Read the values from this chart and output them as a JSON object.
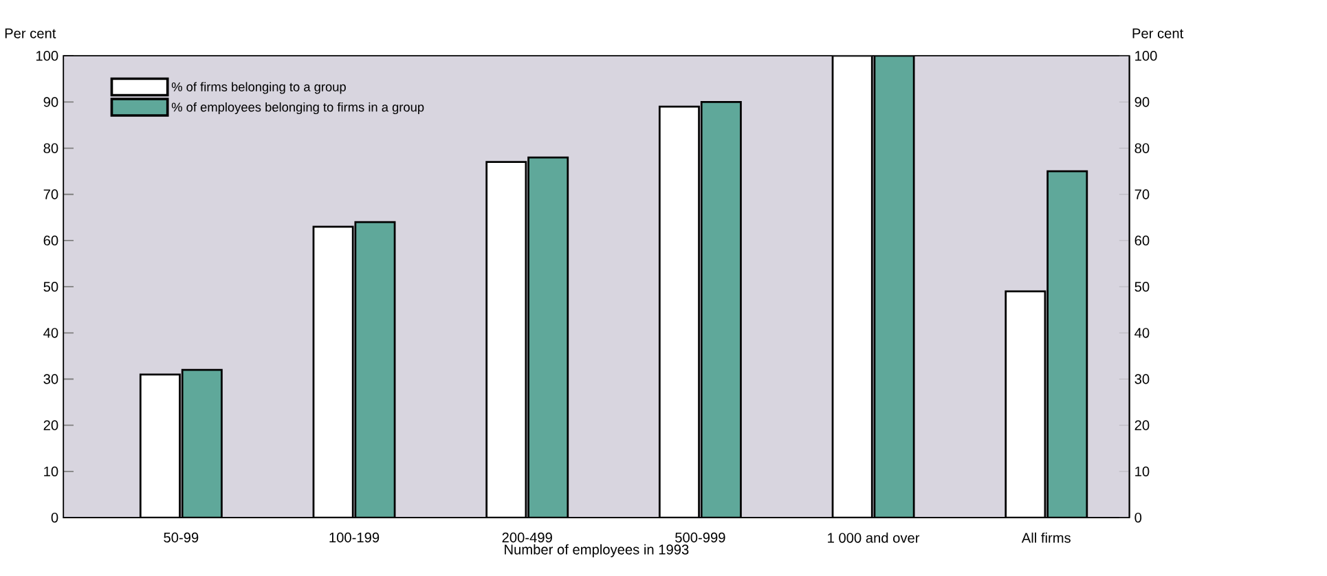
{
  "chart_data": {
    "type": "bar",
    "xlabel": "Number of employees in 1993",
    "ylabel": "Per cent",
    "y2label": "Per cent",
    "categories": [
      "50-99",
      "100-199",
      "200-499",
      "500-999",
      "1 000 and over",
      "All firms"
    ],
    "series": [
      {
        "name": "% of firms belonging to a group",
        "color": "#ffffff",
        "values": [
          31,
          63,
          77,
          89,
          100,
          49
        ]
      },
      {
        "name": "% of employees belonging to firms in a group",
        "color": "#5fa89a",
        "values": [
          32,
          64,
          78,
          90,
          100,
          75
        ]
      }
    ],
    "ylim": [
      0,
      100
    ],
    "yticks": [
      0,
      10,
      20,
      30,
      40,
      50,
      60,
      70,
      80,
      90,
      100
    ],
    "y2lim": [
      0,
      100
    ],
    "y2ticks": [
      0,
      10,
      20,
      30,
      40,
      50,
      60,
      70,
      80,
      90,
      100
    ],
    "legend": "top left",
    "grid": false
  }
}
